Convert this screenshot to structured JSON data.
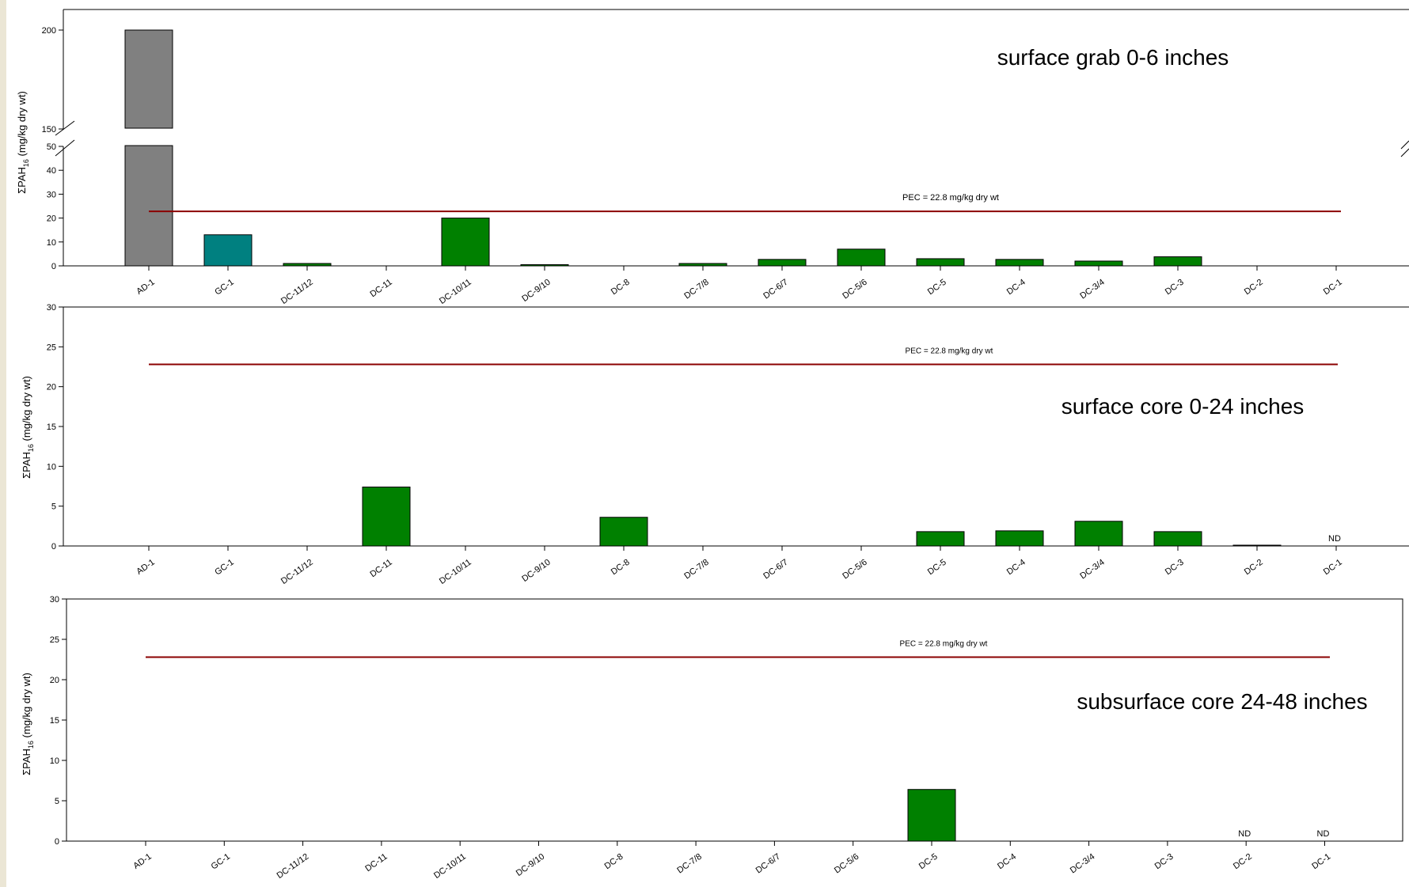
{
  "chart_data": [
    {
      "type": "bar",
      "annotation": "surface grab 0-6 inches",
      "ylabel": "ΣPAH",
      "ylabel_sub": "16",
      "ylabel_unit": " (mg/kg dry wt)",
      "categories": [
        "AD-1",
        "GC-1",
        "DC-11/12",
        "DC-11",
        "DC-10/11",
        "DC-9/10",
        "DC-8",
        "DC-7/8",
        "DC-6/7",
        "DC-5/6",
        "DC-5",
        "DC-4",
        "DC-3/4",
        "DC-3",
        "DC-2",
        "DC-1"
      ],
      "values": [
        200,
        13,
        1,
        null,
        20,
        0.5,
        null,
        1,
        2.7,
        7,
        3,
        2.7,
        2,
        3.8,
        null,
        null
      ],
      "bar_colors": [
        "#808080",
        "#008080",
        "#008000",
        "#008000",
        "#008000",
        "#008000",
        "#008000",
        "#008000",
        "#008000",
        "#008000",
        "#008000",
        "#008000",
        "#008000",
        "#008000",
        "#008000",
        "#008000"
      ],
      "ylim": [
        0,
        200
      ],
      "axis_break": {
        "lower": [
          0,
          50
        ],
        "upper": [
          150,
          200
        ]
      },
      "yticks_lower": [
        0,
        10,
        20,
        30,
        40,
        50
      ],
      "yticks_upper": [
        150,
        200
      ],
      "reference_line": {
        "value": 22.8,
        "label": "PEC = 22.8 mg/kg dry wt",
        "color": "#8b0000"
      },
      "nd_labels": []
    },
    {
      "type": "bar",
      "annotation": "surface core 0-24 inches",
      "ylabel": "ΣPAH",
      "ylabel_sub": "16",
      "ylabel_unit": " (mg/kg dry wt)",
      "categories": [
        "AD-1",
        "GC-1",
        "DC-11/12",
        "DC-11",
        "DC-10/11",
        "DC-9/10",
        "DC-8",
        "DC-7/8",
        "DC-6/7",
        "DC-5/6",
        "DC-5",
        "DC-4",
        "DC-3/4",
        "DC-3",
        "DC-2",
        "DC-1"
      ],
      "values": [
        null,
        null,
        null,
        7.4,
        null,
        null,
        3.6,
        null,
        null,
        null,
        1.8,
        1.9,
        3.1,
        1.8,
        0.1,
        null
      ],
      "bar_colors": [
        "#008000"
      ],
      "ylim": [
        0,
        30
      ],
      "yticks": [
        0,
        5,
        10,
        15,
        20,
        25,
        30
      ],
      "reference_line": {
        "value": 22.8,
        "label": "PEC = 22.8 mg/kg dry wt",
        "color": "#8b0000"
      },
      "nd_labels": [
        {
          "category": "DC-1",
          "text": "ND"
        }
      ]
    },
    {
      "type": "bar",
      "annotation": "subsurface core 24-48 inches",
      "ylabel": "ΣPAH",
      "ylabel_sub": "16",
      "ylabel_unit": " (mg/kg dry wt)",
      "categories": [
        "AD-1",
        "GC-1",
        "DC-11/12",
        "DC-11",
        "DC-10/11",
        "DC-9/10",
        "DC-8",
        "DC-7/8",
        "DC-6/7",
        "DC-5/6",
        "DC-5",
        "DC-4",
        "DC-3/4",
        "DC-3",
        "DC-2",
        "DC-1"
      ],
      "values": [
        null,
        null,
        null,
        null,
        null,
        null,
        null,
        null,
        null,
        null,
        6.4,
        null,
        null,
        null,
        null,
        null
      ],
      "bar_colors": [
        "#008000"
      ],
      "ylim": [
        0,
        30
      ],
      "yticks": [
        0,
        5,
        10,
        15,
        20,
        25,
        30
      ],
      "reference_line": {
        "value": 22.8,
        "label": "PEC = 22.8 mg/kg dry wt",
        "color": "#8b0000"
      },
      "nd_labels": [
        {
          "category": "DC-2",
          "text": "ND"
        },
        {
          "category": "DC-1",
          "text": "ND"
        }
      ]
    }
  ]
}
